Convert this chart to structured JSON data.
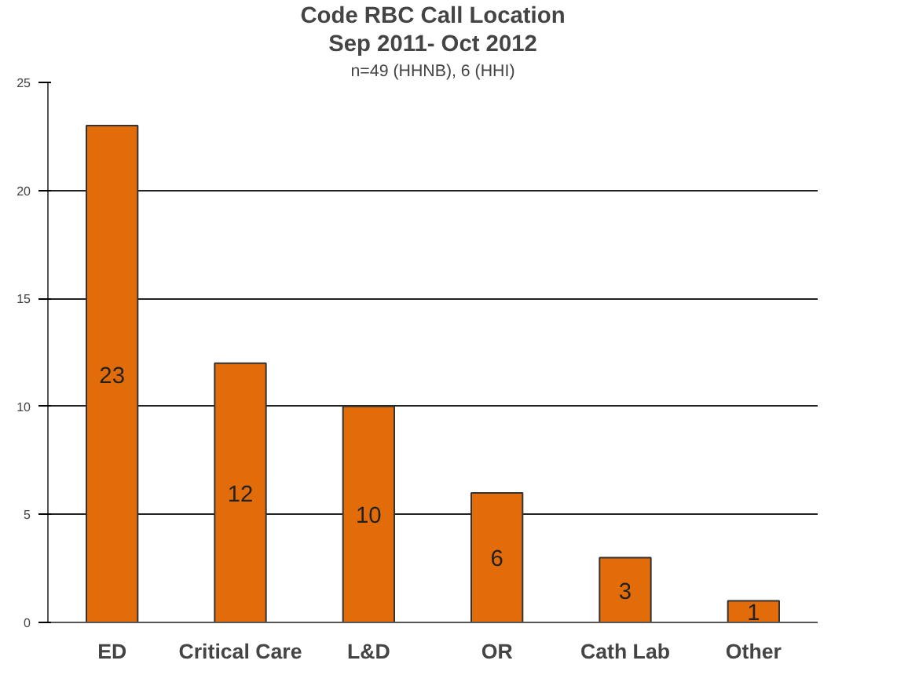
{
  "chart_data": {
    "type": "bar",
    "title": "Code RBC Call Location",
    "subtitle": "Sep 2011- Oct 2012",
    "annotations": [
      "n=49 (HHNB), 6 (HHI)"
    ],
    "categories": [
      "ED",
      "Critical Care",
      "L&D",
      "OR",
      "Cath Lab",
      "Other"
    ],
    "values": [
      23,
      12,
      10,
      6,
      3,
      1
    ],
    "color": "#e36c0a",
    "ylim": [
      0,
      25
    ],
    "yticks": [
      0,
      5,
      10,
      15,
      20,
      25
    ],
    "grid": "y",
    "data_labels": true
  }
}
